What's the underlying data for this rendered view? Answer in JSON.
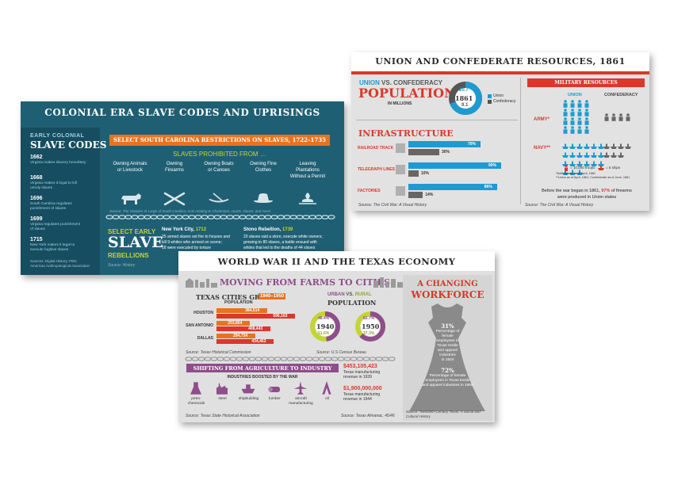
{
  "colors": {
    "colonial_bg": "#1f5f73",
    "colonial_dark": "#174d60",
    "orange": "#e8731f",
    "lime": "#c3d62f",
    "union_blue": "#1d9bd1",
    "confed_gray": "#666666",
    "red": "#d9382b",
    "ww2_purple": "#8f4d8b",
    "ww2_gray": "#b3b3b3",
    "card_gray": "#e0e0e0"
  },
  "colonial": {
    "title": "COLONIAL ERA SLAVE CODES AND UPRISINGS",
    "codes_label": "EARLY COLONIAL",
    "codes_title": "SLAVE CODES",
    "codes": [
      {
        "year": "1662",
        "text": [
          "Virginia makes slavery hereditary"
        ]
      },
      {
        "year": "1668",
        "text": [
          "Virginia makes it legal to kill",
          "unruly slaves"
        ]
      },
      {
        "year": "1696",
        "text": [
          "South Carolina regulates",
          "punishment of slaves"
        ]
      },
      {
        "year": "1699",
        "text": [
          "Virginia regulates punishment",
          "of slaves"
        ]
      },
      {
        "year": "1715",
        "text": [
          "New York makes it legal to",
          "execute fugitive slaves"
        ]
      }
    ],
    "codes_source": [
      "Sources: Digital History; PBS;",
      "American Anthropological Association"
    ],
    "restrictions_banner": "SELECT SOUTH CAROLINA RESTRICTIONS ON SLAVES, 1722–1735",
    "prohibited_title": "SLAVES PROHIBITED FROM …",
    "prohibited": [
      {
        "label": [
          "Owning Animals",
          "or Livestock"
        ],
        "icon": "cow-icon"
      },
      {
        "label": [
          "Owning",
          "Firearms"
        ],
        "icon": "crossed-rifles-icon"
      },
      {
        "label": [
          "Owning Boats",
          "or Canoes"
        ],
        "icon": "canoe-icon"
      },
      {
        "label": [
          "Owning Fine",
          "Clothes"
        ],
        "icon": "hat-icon"
      },
      {
        "label": [
          "Leaving",
          "Plantations",
          "Without a Permit"
        ],
        "icon": "plantation-icon"
      }
    ],
    "restrictions_source": "Source: The Statutes at Large of South Carolina: Acts relating to Charleston, courts, slaves, and rivers",
    "rebellions_label_1": "SELECT EARLY",
    "rebellions_label_2": "SLAVE",
    "rebellions_label_3": "REBELLIONS",
    "rebellions_source": "Source: History",
    "rebellions": [
      {
        "title": "New York City,",
        "year": "1712",
        "text": [
          "25 armed slaves set fire to houses and",
          "kill 9 whites who arrived on scene;",
          "18 were executed by torture"
        ]
      },
      {
        "title": "Stono Rebellion,",
        "year": "1739",
        "text": [
          "20 slaves raid a store, execute white owners;",
          "growing to 80 slaves, a battle ensued with",
          "whites that led to the deaths of 44 slaves"
        ]
      }
    ]
  },
  "union": {
    "title": "UNION AND CONFEDERATE RESOURCES, 1861",
    "pop_union": "UNION",
    "pop_vs": "VS.",
    "pop_confed": "CONFEDERACY",
    "pop_title": "POPULATION",
    "pop_subtitle": "IN MILLIONS",
    "pop_union_value": "20.7",
    "pop_confed_value": "9.1",
    "pop_year": "1861",
    "legend_union": "Union",
    "legend_confed": "Confederacy",
    "infrastructure_title": "INFRASTRUCTURE",
    "infrastructure": [
      {
        "label": "RAILROAD TRACK",
        "union": 70,
        "confed": 30,
        "union_label": "70%",
        "confed_label": "30%"
      },
      {
        "label": "TELEGRAPH LINES",
        "union": 90,
        "confed": 10,
        "union_label": "90%",
        "confed_label": "10%"
      },
      {
        "label": "FACTORIES",
        "union": 86,
        "confed": 14,
        "union_label": "86%",
        "confed_label": "14%"
      }
    ],
    "infra_source": "Source: The Civil War: A Visual History",
    "military_banner": "MILITARY RESOURCES",
    "mil_union": "UNION",
    "mil_confed": "CONFEDERACY",
    "army_label": "ARMY*",
    "navy_label": "NAVY**",
    "army_union_icons": 16,
    "army_confed_icons": 4,
    "navy_union_icons": 21,
    "navy_confed_icons": 7,
    "legend_troops": "= 10,000 troops",
    "legend_ships": "= 5 ships",
    "footnotes": [
      "*Both figures as of April, 1861",
      "**Union as of April, 1861; Confederate as of June, 1861"
    ],
    "firearms_text_1": "Before the war began in 1861,",
    "firearms_pct": "97%",
    "firearms_text_2": "of firearms",
    "firearms_text_3": "were produced in Union states",
    "mil_source": "Source: The Civil War: A Visual History"
  },
  "ww2": {
    "title": "WORLD WAR II AND THE TEXAS ECONOMY",
    "farms_title": "MOVING FROM FARMS TO CITIES",
    "cities_title": "TEXAS CITIES GROW",
    "cities_years": "1940–1950",
    "cities_subtitle": "POPULATION",
    "cities": [
      {
        "name": "HOUSTON",
        "v1940": 384514,
        "v1950": 596163,
        "l1940": "384,514",
        "l1950": "596,163"
      },
      {
        "name": "SAN ANTONIO",
        "v1940": 253854,
        "v1950": 408443,
        "l1940": "253,854",
        "l1950": "408,443"
      },
      {
        "name": "DALLAS",
        "v1940": 294734,
        "v1950": 434462,
        "l1940": "294,734",
        "l1950": "434,462"
      }
    ],
    "cities_source": "Source: Texas Historical Commission",
    "urban_label": "URBAN",
    "vs_label": "VS.",
    "rural_label": "RURAL",
    "urban_title": "POPULATION",
    "donut_1940": {
      "year": "1940",
      "urban": "48.4%",
      "rural": "51.6%",
      "urban_value": 48.4
    },
    "donut_1950": {
      "year": "1950",
      "urban": "62.7%",
      "rural": "37.3%",
      "urban_value": 62.7
    },
    "urban_source": "Source: U.S Census Bureau",
    "industry_banner": "SHIFTING FROM AGRICULTURE TO INDUSTRY",
    "industry_subtitle": "INDUSTRIES BOOSTED BY THE WAR",
    "industries": [
      {
        "label": [
          "petro-",
          "chemicals"
        ],
        "icon": "flask-icon"
      },
      {
        "label": [
          "steel"
        ],
        "icon": "steel-mill-icon"
      },
      {
        "label": [
          "shipbuilding"
        ],
        "icon": "ship-icon"
      },
      {
        "label": [
          "lumber"
        ],
        "icon": "log-icon"
      },
      {
        "label": [
          "aircraft",
          "manufacturing"
        ],
        "icon": "airplane-icon"
      },
      {
        "label": [
          "oil"
        ],
        "icon": "oil-derrick-icon"
      }
    ],
    "industry_source": "Source: Texas State Historical Association",
    "rev_1939_value": "$453,105,423",
    "rev_1939_text": [
      "Texas manufacturing",
      "revenue in 1939"
    ],
    "rev_1944_value": "$1,900,000,000",
    "rev_1944_text": [
      "Texas manufacturing",
      "revenue in 1944"
    ],
    "rev_source": "Source: Texas Almanac, 45/46",
    "workforce_title_1": "A CHANGING",
    "workforce_title_2": "WORKFORCE",
    "workforce_1920_pct": "31%",
    "workforce_1920_text": [
      "Percentage of",
      "female",
      "employees in",
      "Texas textile",
      "and apparel",
      "industries",
      "in 1920"
    ],
    "workforce_1950_pct": "72%",
    "workforce_1950_text": [
      "Percentage of female",
      "employees in Texas textile",
      "and apparel industries in 1950"
    ],
    "workforce_source": [
      "Source: Twentieth-Century Texas: A Social and",
      "Cultural History"
    ]
  }
}
